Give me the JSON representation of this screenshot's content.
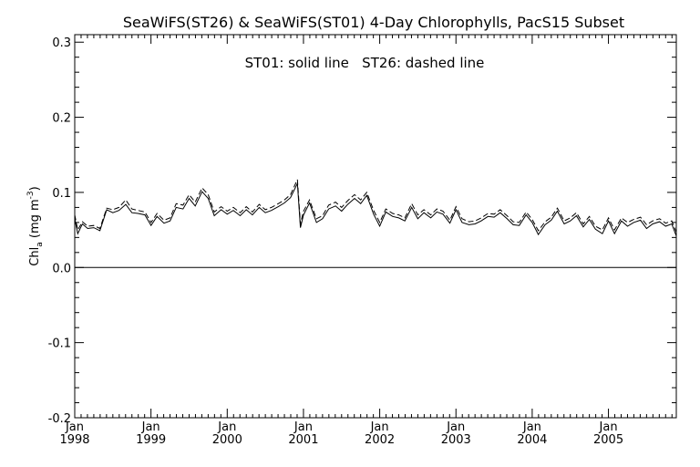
{
  "chart_data": {
    "type": "line",
    "title": "SeaWiFS(ST26) & SeaWiFS(ST01) 4-Day Chlorophylls, PacS15 Subset",
    "annotation": "ST01: solid line   ST26: dashed line",
    "ylabel": {
      "base": "Chl",
      "sub": "a",
      "units_pre": " (mg m",
      "sup": "-3",
      "units_post": ")"
    },
    "xlim": [
      1998.0,
      2005.89
    ],
    "ylim": [
      -0.2,
      0.31
    ],
    "yticks": [
      -0.2,
      -0.1,
      0.0,
      0.1,
      0.2,
      0.3
    ],
    "ytick_labels": [
      "-0.2",
      "-0.1",
      "0.0",
      "0.1",
      "0.2",
      "0.3"
    ],
    "xticks": [
      {
        "value": 1998,
        "month": "Jan",
        "year": "1998"
      },
      {
        "value": 1999,
        "month": "Jan",
        "year": "1999"
      },
      {
        "value": 2000,
        "month": "Jan",
        "year": "2000"
      },
      {
        "value": 2001,
        "month": "Jan",
        "year": "2001"
      },
      {
        "value": 2002,
        "month": "Jan",
        "year": "2002"
      },
      {
        "value": 2003,
        "month": "Jan",
        "year": "2003"
      },
      {
        "value": 2004,
        "month": "Jan",
        "year": "2004"
      },
      {
        "value": 2005,
        "month": "Jan",
        "year": "2005"
      }
    ],
    "zero_line": 0.0,
    "series": [
      {
        "name": "ST01",
        "style": "solid",
        "x": [
          1998.0,
          1998.04,
          1998.1,
          1998.17,
          1998.25,
          1998.33,
          1998.42,
          1998.5,
          1998.58,
          1998.67,
          1998.75,
          1998.83,
          1998.92,
          1999.0,
          1999.08,
          1999.17,
          1999.25,
          1999.33,
          1999.42,
          1999.5,
          1999.58,
          1999.67,
          1999.75,
          1999.83,
          1999.92,
          2000.0,
          2000.08,
          2000.17,
          2000.25,
          2000.33,
          2000.42,
          2000.5,
          2000.58,
          2000.67,
          2000.75,
          2000.83,
          2000.92,
          2000.96,
          2001.0,
          2001.08,
          2001.17,
          2001.25,
          2001.33,
          2001.42,
          2001.5,
          2001.58,
          2001.67,
          2001.75,
          2001.83,
          2001.92,
          2002.0,
          2002.08,
          2002.17,
          2002.25,
          2002.33,
          2002.42,
          2002.5,
          2002.58,
          2002.67,
          2002.75,
          2002.83,
          2002.92,
          2003.0,
          2003.08,
          2003.17,
          2003.25,
          2003.33,
          2003.42,
          2003.5,
          2003.58,
          2003.67,
          2003.75,
          2003.83,
          2003.92,
          2004.0,
          2004.08,
          2004.17,
          2004.25,
          2004.33,
          2004.42,
          2004.5,
          2004.58,
          2004.67,
          2004.75,
          2004.83,
          2004.92,
          2005.0,
          2005.08,
          2005.17,
          2005.25,
          2005.33,
          2005.42,
          2005.5,
          2005.58,
          2005.67,
          2005.75,
          2005.83,
          2005.89
        ],
        "y": [
          0.065,
          0.045,
          0.058,
          0.052,
          0.053,
          0.049,
          0.077,
          0.073,
          0.076,
          0.084,
          0.073,
          0.072,
          0.07,
          0.056,
          0.068,
          0.059,
          0.062,
          0.08,
          0.078,
          0.092,
          0.082,
          0.101,
          0.092,
          0.069,
          0.077,
          0.071,
          0.076,
          0.069,
          0.077,
          0.07,
          0.08,
          0.073,
          0.076,
          0.081,
          0.086,
          0.093,
          0.112,
          0.053,
          0.07,
          0.086,
          0.06,
          0.065,
          0.078,
          0.082,
          0.075,
          0.084,
          0.092,
          0.085,
          0.096,
          0.071,
          0.055,
          0.074,
          0.068,
          0.066,
          0.062,
          0.08,
          0.065,
          0.073,
          0.066,
          0.074,
          0.071,
          0.059,
          0.077,
          0.06,
          0.057,
          0.058,
          0.062,
          0.068,
          0.067,
          0.073,
          0.065,
          0.057,
          0.056,
          0.07,
          0.06,
          0.044,
          0.057,
          0.063,
          0.075,
          0.058,
          0.062,
          0.069,
          0.054,
          0.064,
          0.051,
          0.045,
          0.062,
          0.045,
          0.062,
          0.055,
          0.06,
          0.063,
          0.052,
          0.058,
          0.061,
          0.055,
          0.058,
          0.042
        ]
      },
      {
        "name": "ST26",
        "style": "dashed",
        "x": [
          1998.0,
          1998.04,
          1998.1,
          1998.17,
          1998.25,
          1998.33,
          1998.42,
          1998.5,
          1998.58,
          1998.67,
          1998.75,
          1998.83,
          1998.92,
          1999.0,
          1999.08,
          1999.17,
          1999.25,
          1999.33,
          1999.42,
          1999.5,
          1999.58,
          1999.67,
          1999.75,
          1999.83,
          1999.92,
          2000.0,
          2000.08,
          2000.17,
          2000.25,
          2000.33,
          2000.42,
          2000.5,
          2000.58,
          2000.67,
          2000.75,
          2000.83,
          2000.92,
          2000.96,
          2001.0,
          2001.08,
          2001.17,
          2001.25,
          2001.33,
          2001.42,
          2001.5,
          2001.58,
          2001.67,
          2001.75,
          2001.83,
          2001.92,
          2002.0,
          2002.08,
          2002.17,
          2002.25,
          2002.33,
          2002.42,
          2002.5,
          2002.58,
          2002.67,
          2002.75,
          2002.83,
          2002.92,
          2003.0,
          2003.08,
          2003.17,
          2003.25,
          2003.33,
          2003.42,
          2003.5,
          2003.58,
          2003.67,
          2003.75,
          2003.83,
          2003.92,
          2004.0,
          2004.08,
          2004.17,
          2004.25,
          2004.33,
          2004.42,
          2004.5,
          2004.58,
          2004.67,
          2004.75,
          2004.83,
          2004.92,
          2005.0,
          2005.08,
          2005.17,
          2005.25,
          2005.33,
          2005.42,
          2005.5,
          2005.58,
          2005.67,
          2005.75,
          2005.83,
          2005.89
        ],
        "y": [
          0.07,
          0.05,
          0.061,
          0.055,
          0.056,
          0.052,
          0.079,
          0.077,
          0.08,
          0.09,
          0.078,
          0.076,
          0.074,
          0.06,
          0.072,
          0.063,
          0.066,
          0.085,
          0.083,
          0.097,
          0.087,
          0.106,
          0.097,
          0.074,
          0.081,
          0.075,
          0.08,
          0.073,
          0.081,
          0.074,
          0.084,
          0.077,
          0.08,
          0.085,
          0.09,
          0.097,
          0.117,
          0.058,
          0.075,
          0.09,
          0.065,
          0.069,
          0.083,
          0.087,
          0.08,
          0.089,
          0.097,
          0.09,
          0.1,
          0.076,
          0.06,
          0.078,
          0.072,
          0.07,
          0.066,
          0.085,
          0.07,
          0.077,
          0.07,
          0.078,
          0.075,
          0.063,
          0.081,
          0.065,
          0.061,
          0.062,
          0.066,
          0.072,
          0.071,
          0.077,
          0.069,
          0.061,
          0.06,
          0.074,
          0.064,
          0.049,
          0.061,
          0.067,
          0.079,
          0.062,
          0.066,
          0.073,
          0.058,
          0.068,
          0.055,
          0.05,
          0.066,
          0.05,
          0.066,
          0.06,
          0.064,
          0.067,
          0.057,
          0.062,
          0.065,
          0.059,
          0.062,
          0.047
        ]
      }
    ]
  }
}
